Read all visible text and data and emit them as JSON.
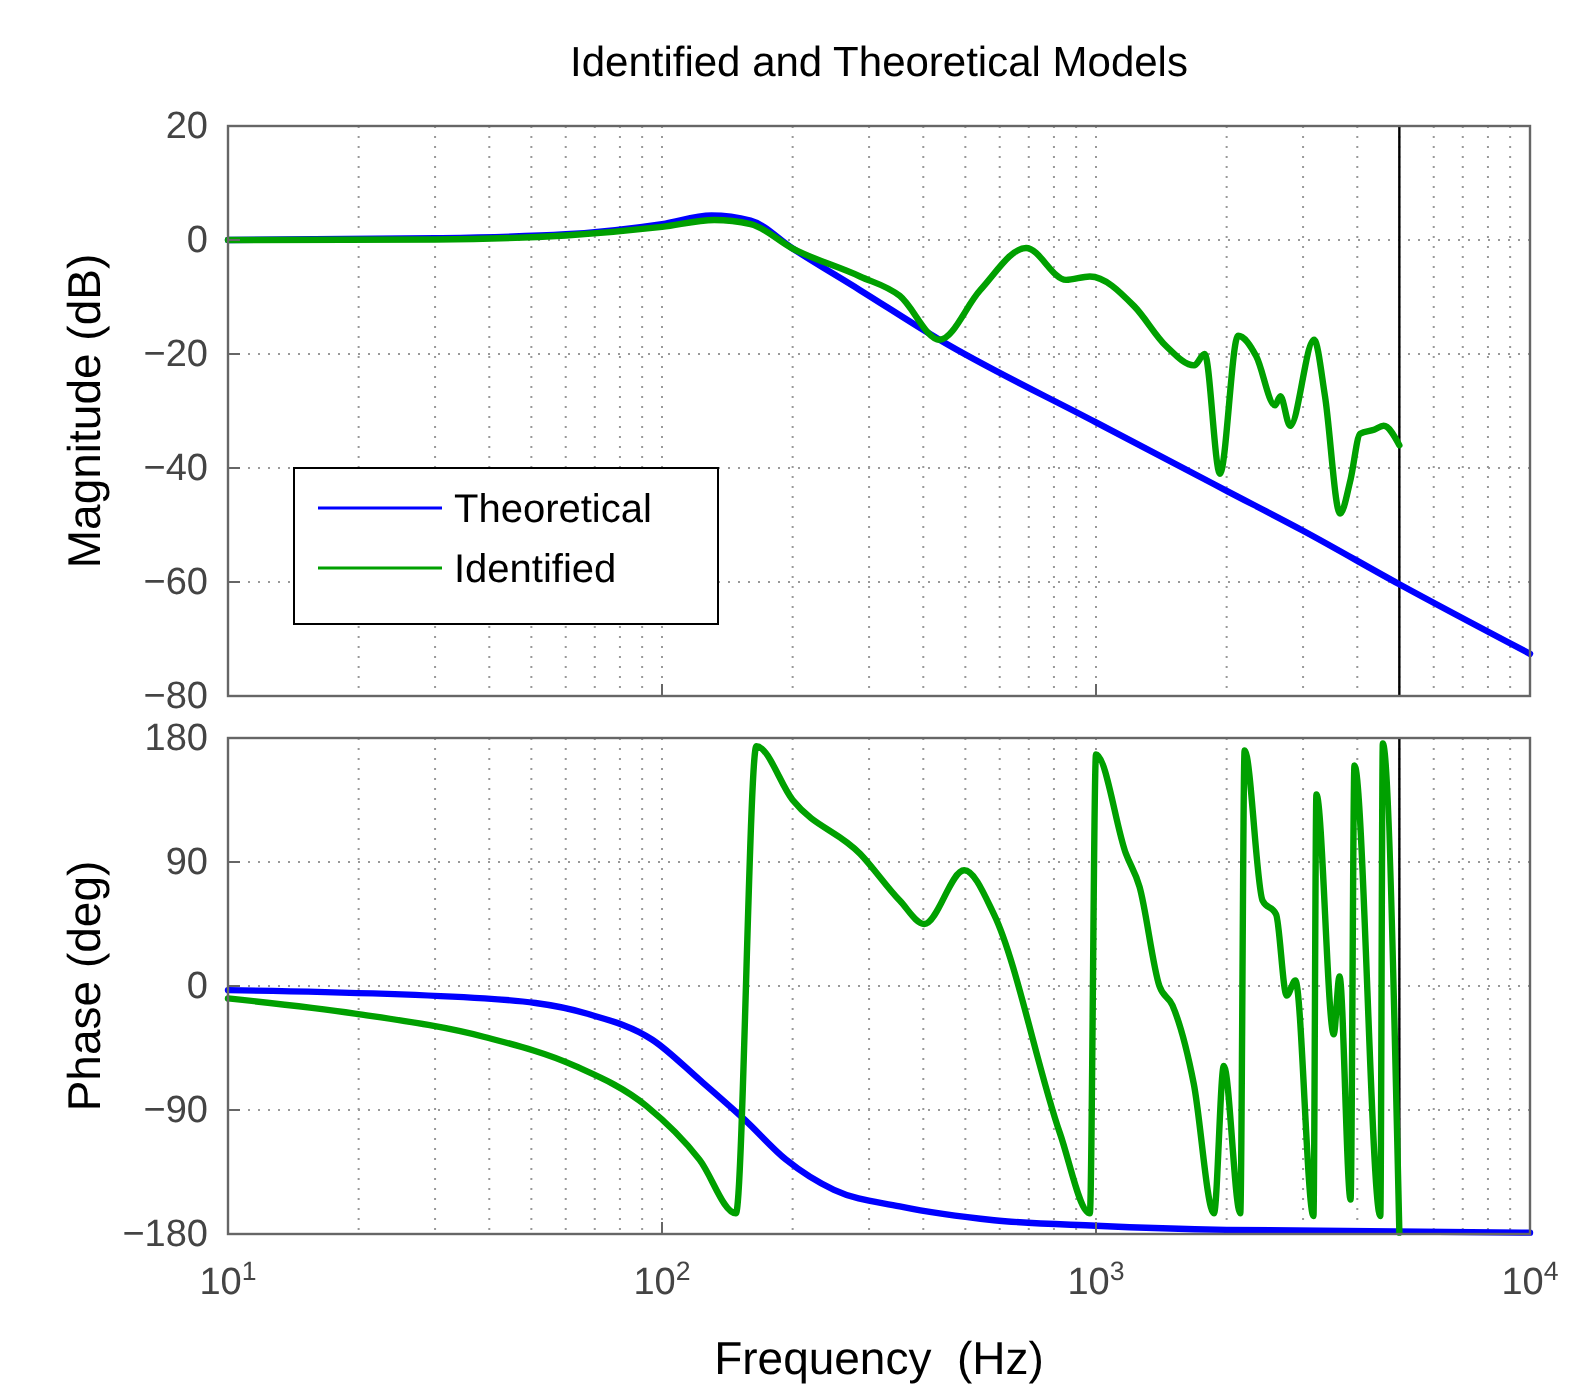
{
  "chart_data": [
    {
      "type": "line",
      "title": "Identified and Theoretical Models",
      "ylabel": "Magnitude (dB)",
      "log": "x",
      "grid": true,
      "legend": "bottom left",
      "tick_labels": "y",
      "line_style": "solid",
      "marker": "none",
      "xlim": [
        10,
        10000
      ],
      "xticks": [
        {
          "value": 10,
          "label": null
        },
        {
          "value": 100,
          "label": null
        },
        {
          "value": 1000,
          "label": null
        },
        {
          "value": 10000,
          "label": null
        }
      ],
      "ylim": [
        -80,
        20
      ],
      "yticks": [
        -80,
        -60,
        -40,
        -20,
        0,
        20
      ],
      "ref_lines": [
        {
          "axis": "x",
          "value": 5000,
          "color": "#000000"
        }
      ],
      "series": [
        {
          "name": "Theoretical",
          "color": "#0000ff",
          "x": [
            10,
            30,
            60,
            100,
            130,
            160,
            200,
            286,
            436,
            1000,
            2000,
            3000,
            5000,
            10000
          ],
          "values": [
            0,
            0.3,
            1,
            2.8,
            4.3,
            3.4,
            -1.5,
            -8.8,
            -17.5,
            -32,
            -44,
            -51,
            -60.4,
            -72.6
          ]
        },
        {
          "name": "Identified",
          "color": "#00a000",
          "x": [
            10,
            30,
            60,
            100,
            132,
            160,
            200,
            286,
            353,
            436,
            541,
            690,
            853,
            968,
            1224,
            1450,
            1683,
            1780,
            1930,
            2125,
            2340,
            2585,
            2660,
            2800,
            3180,
            3370,
            3650,
            3860,
            4060,
            4370,
            4600,
            5000
          ],
          "values": [
            0,
            0.1,
            0.8,
            2.3,
            3.5,
            2.8,
            -1.5,
            -6.4,
            -9.8,
            -17.5,
            -8.8,
            -1.4,
            -7,
            -6.4,
            -11.6,
            -18.6,
            -22,
            -20,
            -41,
            -16.8,
            -20.4,
            -29,
            -27.4,
            -32.6,
            -17.5,
            -27.4,
            -48,
            -42,
            -34,
            -33.3,
            -32.6,
            -36
          ]
        }
      ]
    },
    {
      "type": "line",
      "xlabel": "Frequency  (Hz)",
      "ylabel": "Phase (deg)",
      "log": "x",
      "grid": true,
      "line_style": "solid",
      "marker": "none",
      "xlim": [
        10,
        10000
      ],
      "xticks": [
        {
          "value": 10,
          "label": "10$^{1}$"
        },
        {
          "value": 100,
          "label": "10$^{2}$"
        },
        {
          "value": 1000,
          "label": "10$^{3}$"
        },
        {
          "value": 10000,
          "label": "10$^{4}$"
        }
      ],
      "ylim": [
        -180,
        180
      ],
      "yticks": [
        -180,
        -90,
        0,
        90,
        180
      ],
      "ref_lines": [
        {
          "axis": "x",
          "value": 5000,
          "color": "#000000"
        }
      ],
      "series": [
        {
          "color": "#0000ff",
          "x": [
            10,
            39,
            67,
            95,
            122,
            155,
            193,
            249,
            353,
            582,
            1000,
            2000,
            10000
          ],
          "values": [
            -3,
            -9,
            -20,
            -39,
            -68,
            -97,
            -126,
            -148,
            -160,
            -170,
            -174,
            -177,
            -179
          ]
        },
        {
          "color": "#00a000",
          "x": [
            10,
            19.6,
            39,
            63,
            92,
            122,
            148,
            165,
            200,
            286,
            353,
            402,
            497,
            582,
            826,
            968,
            1000,
            1172,
            1260,
            1400,
            1500,
            1680,
            1870,
            1970,
            2150,
            2200,
            2420,
            2600,
            2750,
            2880,
            3170,
            3220,
            3530,
            3640,
            3860,
            3940,
            4520,
            4580,
            5000
          ],
          "values": [
            -9,
            -20,
            -37,
            -58,
            -87,
            -126,
            -165,
            174,
            135,
            96,
            62,
            45,
            84,
            52,
            -107,
            -165,
            168,
            96,
            72,
            0,
            -14,
            -71,
            -165,
            -58,
            -165,
            171,
            62,
            52,
            -7,
            4,
            -167,
            139,
            -35,
            7,
            -155,
            160,
            -167,
            176,
            -179
          ]
        }
      ]
    }
  ]
}
